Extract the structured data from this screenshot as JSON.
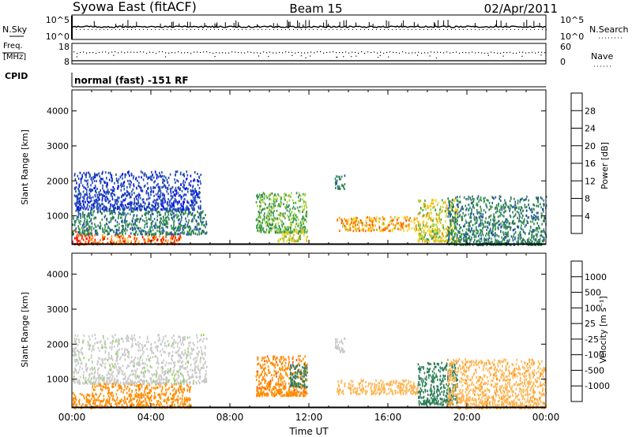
{
  "header": {
    "station": "Syowa East (fitACF)",
    "beam": "Beam 15",
    "date": "02/Apr/2011"
  },
  "noise_panel": {
    "left_label": "N.Sky",
    "right_label": "N.Search",
    "left_ticks": [
      "10^5",
      "10^0"
    ],
    "right_ticks": [
      "10^5",
      "10^0"
    ]
  },
  "freq_panel": {
    "left_label_1": "Freq.",
    "left_label_2": "[MHz]",
    "right_label": "Nave",
    "left_ticks": [
      "18",
      "8"
    ],
    "right_ticks": [
      "60",
      "0"
    ]
  },
  "cpid": {
    "label": "CPID",
    "value": "normal (fast) -151 RF"
  },
  "colors": {
    "power": [
      "#0000ff",
      "#1f48b5",
      "#2e7d5a",
      "#3aa049",
      "#a8d03a",
      "#ffd21a",
      "#ff9a00",
      "#ff6400",
      "#ff3000",
      "#ff0000"
    ],
    "velocity": [
      "#ff0000",
      "#ff5000",
      "#ff8c00",
      "#ffb450",
      "#c8c8c8",
      "#c8c8c8",
      "#8cd250",
      "#3aa049",
      "#2e7d5a",
      "#2255aa",
      "#0000ff"
    ]
  },
  "chart_data": [
    {
      "type": "heatmap",
      "title": "",
      "xlabel": "",
      "ylabel": "Slant Range [km]",
      "xlim": [
        0,
        24
      ],
      "ylim": [
        180,
        4600
      ],
      "yticks": [
        1000,
        2000,
        3000,
        4000
      ],
      "ytick_labels": [
        "1000",
        "2000",
        "3000",
        "4000"
      ],
      "colorbar": {
        "label": "Power [dB]",
        "ticks": [
          4,
          8,
          12,
          16,
          20,
          24,
          28
        ],
        "tick_labels": [
          "4",
          "8",
          "12",
          "16",
          "20",
          "24",
          "28"
        ],
        "range": [
          0,
          32
        ]
      },
      "scatter_regions": [
        {
          "t0": 0.0,
          "t1": 1.0,
          "r0": 200,
          "r1": 650,
          "level": 26
        },
        {
          "t0": 1.0,
          "t1": 5.5,
          "r0": 220,
          "r1": 500,
          "level": 24
        },
        {
          "t0": 0.0,
          "t1": 6.8,
          "r0": 500,
          "r1": 1200,
          "level": 8
        },
        {
          "t0": 0.1,
          "t1": 6.5,
          "r0": 1200,
          "r1": 2300,
          "level": 4
        },
        {
          "t0": 9.3,
          "t1": 11.9,
          "r0": 550,
          "r1": 1700,
          "level": 12
        },
        {
          "t0": 10.4,
          "t1": 11.9,
          "r0": 300,
          "r1": 650,
          "level": 16
        },
        {
          "t0": 13.3,
          "t1": 13.8,
          "r0": 1800,
          "r1": 2200,
          "level": 8
        },
        {
          "t0": 13.4,
          "t1": 17.5,
          "r0": 600,
          "r1": 1000,
          "level": 20
        },
        {
          "t0": 17.5,
          "t1": 19.5,
          "r0": 300,
          "r1": 1500,
          "level": 16
        },
        {
          "t0": 19.0,
          "t1": 24.0,
          "r0": 200,
          "r1": 1600,
          "level": 8
        }
      ]
    },
    {
      "type": "heatmap",
      "title": "",
      "xlabel": "Time UT",
      "ylabel": "Slant Range [km]",
      "xlim": [
        0,
        24
      ],
      "ylim": [
        180,
        4600
      ],
      "xticks": [
        0,
        4,
        8,
        12,
        16,
        20,
        24
      ],
      "xtick_labels": [
        "00:00",
        "04:00",
        "08:00",
        "12:00",
        "16:00",
        "20:00",
        "00:00"
      ],
      "yticks": [
        1000,
        2000,
        3000,
        4000
      ],
      "ytick_labels": [
        "1000",
        "2000",
        "3000",
        "4000"
      ],
      "colorbar": {
        "label": "Velocity [m s⁻¹]",
        "ticks": [
          1000,
          500,
          100,
          25,
          -25,
          -100,
          -500,
          -1000
        ],
        "tick_labels": [
          "1000",
          "500",
          "100",
          "25",
          "-25",
          "-100",
          "-500",
          "-1000"
        ]
      },
      "scatter_regions": [
        {
          "t0": 0.0,
          "t1": 1.0,
          "r0": 200,
          "r1": 650,
          "level": -300
        },
        {
          "t0": 1.0,
          "t1": 6.0,
          "r0": 220,
          "r1": 900,
          "level": -200
        },
        {
          "t0": 0.0,
          "t1": 6.8,
          "r0": 900,
          "r1": 2300,
          "level": 20
        },
        {
          "t0": 9.3,
          "t1": 11.9,
          "r0": 550,
          "r1": 1700,
          "level": -400
        },
        {
          "t0": 11.0,
          "t1": 11.9,
          "r0": 800,
          "r1": 1500,
          "level": 800
        },
        {
          "t0": 13.3,
          "t1": 13.8,
          "r0": 1800,
          "r1": 2200,
          "level": 0
        },
        {
          "t0": 13.4,
          "t1": 17.5,
          "r0": 600,
          "r1": 1000,
          "level": -60
        },
        {
          "t0": 17.5,
          "t1": 19.5,
          "r0": 300,
          "r1": 1500,
          "level": 700
        },
        {
          "t0": 19.0,
          "t1": 24.0,
          "r0": 200,
          "r1": 1600,
          "level": -80
        }
      ]
    }
  ]
}
